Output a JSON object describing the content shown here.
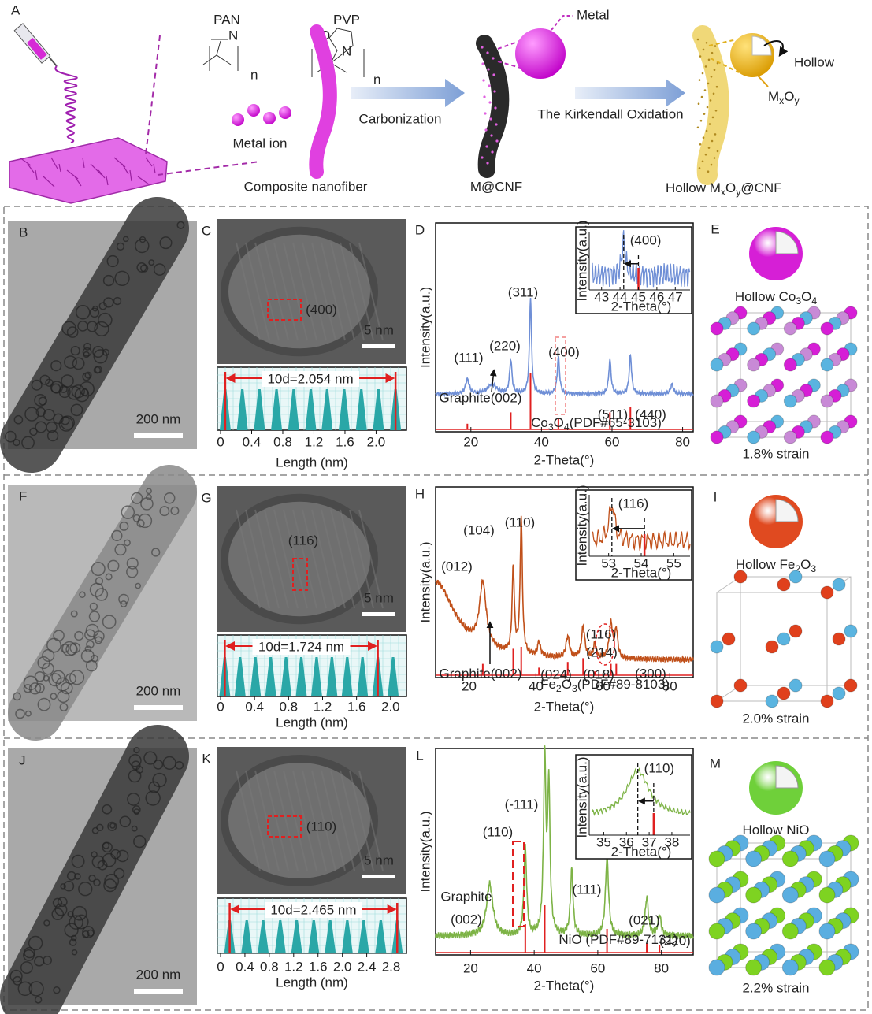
{
  "panel_a": {
    "letter": "A",
    "pan": "PAN",
    "pvp": "PVP",
    "pan_n": "n",
    "pvp_n": "n",
    "pan_atom": "N",
    "pvp_atom_o": "O",
    "pvp_atom_n": "N",
    "metal_ion": "Metal ion",
    "composite": "Composite nanofiber",
    "carbonization": "Carbonization",
    "kirkendall": "The Kirkendall Oxidation",
    "metal": "Metal",
    "mcnf": "M@CNF",
    "hollow": "Hollow",
    "mxoy": [
      "M",
      "x",
      "O",
      "y"
    ],
    "hollow_mxoy": [
      "Hollow M",
      "x",
      "O",
      "y",
      "@CNF"
    ]
  },
  "rows": [
    {
      "tem": {
        "letter": "B",
        "scale": "200 nm"
      },
      "hrtem": {
        "letter": "C",
        "plane": "(400)",
        "scale": "5 nm",
        "measure": "10d=2.054 nm"
      },
      "profile": {
        "xlabel": "Length (nm)",
        "xlim": [
          0,
          2.35
        ],
        "xticks": [
          0,
          0.4,
          0.8,
          1.2,
          1.6,
          {
            "value": 2,
            "label": "2.0"
          }
        ],
        "markers": [
          0.06,
          2.25
        ],
        "peaks": [
          0.06,
          0.28,
          0.5,
          0.72,
          0.94,
          1.16,
          1.37,
          1.59,
          1.81,
          2.03,
          2.25
        ]
      },
      "xrd": {
        "letter": "D",
        "ylabel": "Intensity(a.u.)",
        "xlabel": "2-Theta(°)",
        "xlim": [
          10,
          83
        ],
        "xticks": [
          20,
          40,
          60,
          80
        ],
        "color": "#6f8fd6",
        "peaks": [
          {
            "x": 19,
            "height": 0.15,
            "width": 0.6
          },
          {
            "x": 26,
            "height": 0.1,
            "width": 1.5
          },
          {
            "x": 31.3,
            "height": 0.35,
            "width": 0.4
          },
          {
            "x": 36.9,
            "height": 1.0,
            "width": 0.35
          },
          {
            "x": 44.8,
            "height": 0.38,
            "width": 0.4
          },
          {
            "x": 59.4,
            "height": 0.35,
            "width": 0.4
          },
          {
            "x": 65.2,
            "height": 0.4,
            "width": 0.4
          },
          {
            "x": 77,
            "height": 0.1,
            "width": 0.5
          }
        ],
        "reference_peaks": [
          {
            "x": 19,
            "height": 0.1
          },
          {
            "x": 31.3,
            "height": 0.3
          },
          {
            "x": 36.9,
            "height": 1.0
          },
          {
            "x": 44.8,
            "height": 0.2
          },
          {
            "x": 59.4,
            "height": 0.3
          },
          {
            "x": 65.2,
            "height": 0.4
          }
        ],
        "reference_color": "#e02020",
        "reference_label": [
          "Co",
          "3",
          "O",
          "4",
          "(PDF#65-3103)"
        ],
        "annotations": [
          "(111)",
          "(220)",
          "(311)",
          "(400)",
          "Graphite(002)",
          "(511)",
          "(440)"
        ],
        "inset": {
          "ylabel": "Intensity(a.u.)",
          "xlabel": "2-Theta(°)",
          "xlim": [
            42.5,
            47.8
          ],
          "xticks": [
            43,
            44,
            45,
            46,
            47
          ],
          "plane": "(400)",
          "measured_peak": 44.2,
          "reference_peak": 45
        }
      },
      "crystal": {
        "letter": "E",
        "title": [
          "Hollow Co",
          "3",
          "O",
          "4"
        ],
        "strain": "1.8% strain",
        "shell_color": "#d61fd6",
        "atom_colors": [
          "#d61fd6",
          "#5ab4e0",
          "#c88ad6"
        ]
      }
    },
    {
      "tem": {
        "letter": "F",
        "scale": "200 nm"
      },
      "hrtem": {
        "letter": "G",
        "plane": "(116)",
        "scale": "5 nm",
        "measure": "10d=1.724 nm"
      },
      "profile": {
        "xlabel": "Length (nm)",
        "xlim": [
          0,
          2.15
        ],
        "xticks": [
          0,
          0.4,
          0.8,
          1.2,
          1.6,
          {
            "value": 2,
            "label": "2.0"
          }
        ],
        "markers": [
          0.05,
          1.85
        ],
        "peaks": [
          0.05,
          0.23,
          0.41,
          0.59,
          0.77,
          0.95,
          1.13,
          1.31,
          1.49,
          1.67,
          1.85,
          2.03
        ]
      },
      "xrd": {
        "letter": "H",
        "ylabel": "Intensity(a.u.)",
        "xlabel": "2-Theta(°)",
        "xlim": [
          10,
          87
        ],
        "xticks": [
          20,
          40,
          60,
          80
        ],
        "color": "#c0501a",
        "peaks": [
          {
            "x": 10,
            "height": 0.55,
            "width": 7
          },
          {
            "x": 24.1,
            "height": 0.45,
            "width": 1.2
          },
          {
            "x": 33.2,
            "height": 0.6,
            "width": 0.4
          },
          {
            "x": 35.6,
            "height": 0.95,
            "width": 0.4
          },
          {
            "x": 40.9,
            "height": 0.1,
            "width": 0.5
          },
          {
            "x": 49.5,
            "height": 0.15,
            "width": 0.6
          },
          {
            "x": 54.1,
            "height": 0.22,
            "width": 0.6
          },
          {
            "x": 57.6,
            "height": 0.1,
            "width": 0.5
          },
          {
            "x": 62.4,
            "height": 0.25,
            "width": 0.6
          },
          {
            "x": 64,
            "height": 0.2,
            "width": 0.5
          }
        ],
        "reference_peaks": [
          {
            "x": 24.1,
            "height": 0.3
          },
          {
            "x": 33.2,
            "height": 0.7
          },
          {
            "x": 35.6,
            "height": 0.75
          },
          {
            "x": 40.9,
            "height": 0.2
          },
          {
            "x": 49.5,
            "height": 0.35
          },
          {
            "x": 54.1,
            "height": 0.45
          },
          {
            "x": 57.6,
            "height": 0.1
          },
          {
            "x": 62.4,
            "height": 0.3
          },
          {
            "x": 64,
            "height": 0.3
          }
        ],
        "reference_color": "#e02020",
        "reference_label": [
          "Fe",
          "2",
          "O",
          "3",
          "(PDF#89-8103)"
        ],
        "annotations": [
          "(012)",
          "(104)",
          "(110)",
          "(116)",
          "(214)",
          "(024)",
          "(018)",
          "(300)",
          "Graphite(002)"
        ],
        "inset": {
          "ylabel": "Intensity(a.u.)",
          "xlabel": "2-Theta(°)",
          "xlim": [
            52.5,
            55.5
          ],
          "xticks": [
            53,
            54,
            55
          ],
          "plane": "(116)",
          "measured_peak": 53.1,
          "reference_peak": 54.1
        }
      },
      "crystal": {
        "letter": "I",
        "title": [
          "Hollow Fe",
          "2",
          "O",
          "3"
        ],
        "strain": "2.0% strain",
        "shell_color": "#e04a20",
        "atom_colors": [
          "#e0401c",
          "#5ab4e0"
        ]
      }
    },
    {
      "tem": {
        "letter": "J",
        "scale": "200 nm"
      },
      "hrtem": {
        "letter": "K",
        "plane": "(110)",
        "scale": "5 nm",
        "measure": "10d=2.465 nm"
      },
      "profile": {
        "xlabel": "Length (nm)",
        "xlim": [
          0,
          3.0
        ],
        "xticks": [
          0,
          0.4,
          0.8,
          1.2,
          1.6,
          {
            "value": 2,
            "label": "2.0"
          },
          2.4,
          2.8
        ],
        "markers": [
          0.15,
          2.9
        ],
        "peaks": [
          0.15,
          0.43,
          0.7,
          0.98,
          1.25,
          1.53,
          1.8,
          2.08,
          2.35,
          2.63,
          2.9
        ]
      },
      "xrd": {
        "letter": "L",
        "ylabel": "Intensity(a.u.)",
        "xlabel": "2-Theta(°)",
        "xlim": [
          9,
          90
        ],
        "xticks": [
          20,
          40,
          60,
          80
        ],
        "color": "#7db346",
        "peaks": [
          {
            "x": 26,
            "height": 0.3,
            "width": 1.2
          },
          {
            "x": 37.2,
            "height": 0.5,
            "width": 0.5
          },
          {
            "x": 43.3,
            "height": 1.0,
            "width": 0.45
          },
          {
            "x": 44.6,
            "height": 0.85,
            "width": 0.45
          },
          {
            "x": 51.8,
            "height": 0.38,
            "width": 0.5
          },
          {
            "x": 62.9,
            "height": 0.45,
            "width": 0.6
          },
          {
            "x": 75.4,
            "height": 0.22,
            "width": 0.6
          },
          {
            "x": 79.4,
            "height": 0.12,
            "width": 0.6
          }
        ],
        "reference_peaks": [
          {
            "x": 37.2,
            "height": 0.6
          },
          {
            "x": 43.3,
            "height": 1.0
          },
          {
            "x": 62.9,
            "height": 0.5
          },
          {
            "x": 75.4,
            "height": 0.2
          },
          {
            "x": 79.4,
            "height": 0.15
          }
        ],
        "reference_color": "#e02020",
        "reference_label": [
          "NiO (PDF#89-7131)"
        ],
        "annotations": [
          "Graphite",
          "(002)",
          "(110)",
          "(-111)",
          "(111)",
          "(021)",
          "(220)"
        ],
        "inset": {
          "ylabel": "Intensity(a.u.)",
          "xlabel": "2-Theta(°)",
          "xlim": [
            34.5,
            38.8
          ],
          "xticks": [
            35,
            36,
            37,
            38
          ],
          "plane": "(110)",
          "measured_peak": 36.5,
          "reference_peak": 37.2
        }
      },
      "crystal": {
        "letter": "M",
        "title": [
          "Hollow NiO"
        ],
        "strain": "2.2% strain",
        "shell_color": "#6fd03a",
        "atom_colors": [
          "#7ed321",
          "#5aaee0"
        ]
      }
    }
  ]
}
